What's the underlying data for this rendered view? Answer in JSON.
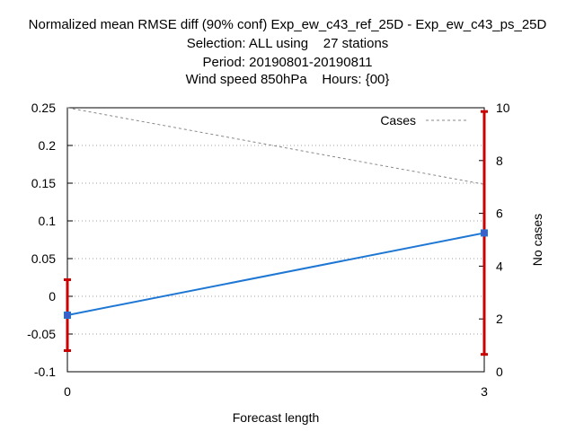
{
  "chart_data": {
    "type": "line",
    "title": [
      "Normalized mean RMSE diff (90% conf) Exp_ew_c43_ref_25D - Exp_ew_c43_ps_25D",
      "Selection: ALL using    27 stations",
      "Period: 20190801-20190811",
      "Wind speed 850hPa    Hours: {00}"
    ],
    "xlabel": "Forecast length",
    "ylabel": "",
    "y2label": "No cases",
    "x": [
      0,
      3
    ],
    "xticks": [
      "0",
      "3"
    ],
    "xlim": [
      0,
      3
    ],
    "ylim": [
      -0.1,
      0.25
    ],
    "yticks": [
      "0.25",
      "0.2",
      "0.15",
      "0.1",
      "0.05",
      "0",
      "-0.05",
      "-0.1"
    ],
    "y2lim": [
      0,
      10
    ],
    "y2ticks": [
      "10",
      "8",
      "6",
      "4",
      "2",
      "0"
    ],
    "grid": true,
    "legend_position": "top-right",
    "series": [
      {
        "values": [
          -0.025,
          0.084
        ],
        "error_low": [
          -0.072,
          -0.077
        ],
        "error_high": [
          0.022,
          0.245
        ],
        "color": "#1f77d4",
        "marker_color": "#3a5fcd",
        "error_color": "#cc0000",
        "axis": "left"
      },
      {
        "name": "Cases",
        "values": [
          10,
          7.1
        ],
        "color": "#888888",
        "style": "dashed",
        "axis": "right"
      }
    ]
  }
}
